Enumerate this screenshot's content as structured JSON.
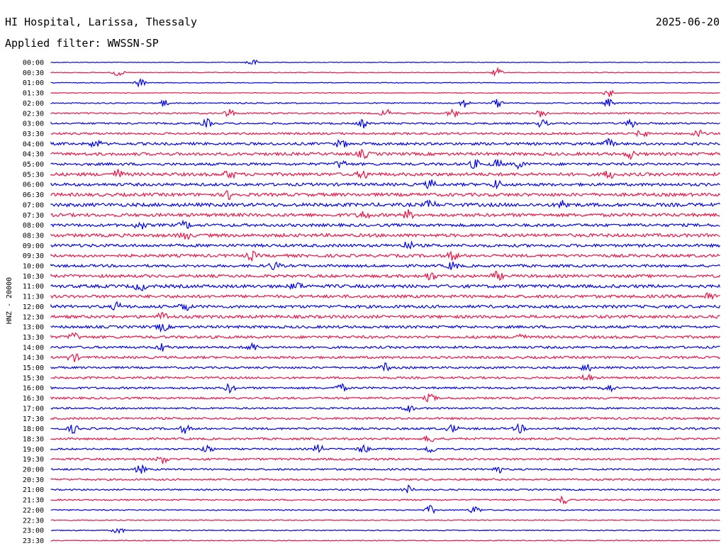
{
  "header": {
    "station": "HI Hospital, Larissa, Thessaly",
    "date": "2025-06-20",
    "filter": "Applied filter: WWSSN-SP"
  },
  "colors": {
    "even_trace": "#0000ee",
    "odd_trace": "#ee1144",
    "text": "#000000",
    "background": "#ffffff"
  },
  "chart_data": {
    "type": "line",
    "subtype": "helicorder",
    "ylabel": "HNZ - 20000",
    "row_labels": [
      "00:00",
      "00:30",
      "01:00",
      "01:30",
      "02:00",
      "02:30",
      "03:00",
      "03:30",
      "04:00",
      "04:30",
      "05:00",
      "05:30",
      "06:00",
      "06:30",
      "07:00",
      "07:30",
      "08:00",
      "08:30",
      "09:00",
      "09:30",
      "10:00",
      "10:30",
      "11:00",
      "11:30",
      "12:00",
      "12:30",
      "13:00",
      "13:30",
      "14:00",
      "14:30",
      "15:00",
      "15:30",
      "16:00",
      "16:30",
      "17:00",
      "17:30",
      "18:00",
      "18:30",
      "19:00",
      "19:30",
      "20:00",
      "20:30",
      "21:00",
      "21:30",
      "22:00",
      "22:30",
      "23:00",
      "23:30"
    ],
    "row_duration_minutes": 30,
    "trace_color_pattern": [
      "blue",
      "red"
    ],
    "relative_noise_amplitude": [
      0.1,
      0.12,
      0.12,
      0.12,
      0.2,
      0.25,
      0.3,
      0.35,
      0.45,
      0.5,
      0.45,
      0.55,
      0.5,
      0.55,
      0.6,
      0.55,
      0.5,
      0.55,
      0.5,
      0.5,
      0.45,
      0.5,
      0.55,
      0.5,
      0.5,
      0.5,
      0.45,
      0.45,
      0.4,
      0.4,
      0.35,
      0.35,
      0.35,
      0.35,
      0.3,
      0.35,
      0.35,
      0.35,
      0.3,
      0.35,
      0.3,
      0.3,
      0.25,
      0.25,
      0.2,
      0.15,
      0.15,
      0.15
    ],
    "events_minutes": [
      [
        9
      ],
      [
        3,
        20
      ],
      [
        4
      ],
      [
        25
      ],
      [
        5,
        18.5,
        20,
        25
      ],
      [
        8,
        15,
        18,
        22
      ],
      [
        7,
        14,
        22,
        26
      ],
      [
        26.5,
        29
      ],
      [
        2,
        13,
        25
      ],
      [
        14,
        26
      ],
      [
        13,
        19,
        20,
        21
      ],
      [
        3,
        8,
        14,
        25
      ],
      [
        17,
        20
      ],
      [
        8
      ],
      [
        17,
        23
      ],
      [
        16,
        14
      ],
      [
        4,
        6
      ],
      [
        6
      ],
      [
        16
      ],
      [
        9,
        18
      ],
      [
        10,
        18
      ],
      [
        17,
        20
      ],
      [
        4,
        11
      ],
      [
        29.5
      ],
      [
        3,
        6
      ],
      [
        5
      ],
      [
        5
      ],
      [
        1,
        21
      ],
      [
        5,
        9
      ],
      [
        1
      ],
      [
        15,
        24
      ],
      [
        24
      ],
      [
        8,
        13,
        25
      ],
      [
        17
      ],
      [
        16
      ],
      [],
      [
        1,
        6,
        18,
        21
      ],
      [
        17
      ],
      [
        7,
        12,
        14,
        17
      ],
      [
        5
      ],
      [
        4,
        20
      ],
      [],
      [
        16
      ],
      [
        23
      ],
      [
        17,
        19
      ],
      [],
      [
        3
      ],
      []
    ]
  }
}
